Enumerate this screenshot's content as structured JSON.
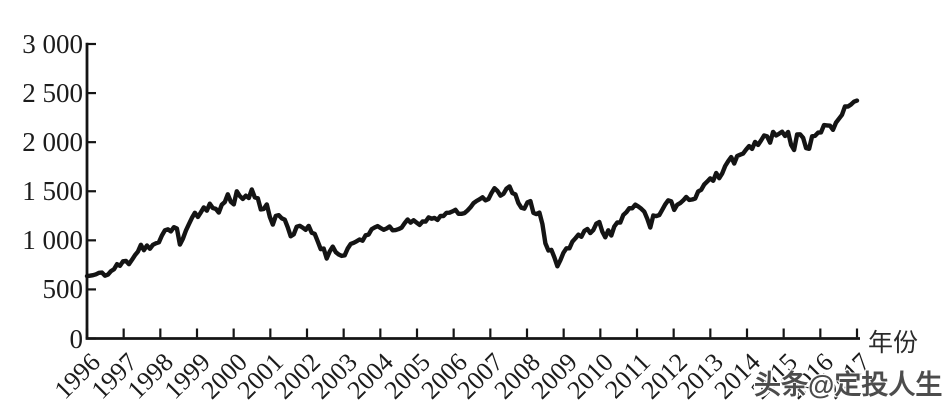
{
  "chart_data": {
    "type": "line",
    "title": "",
    "xlabel": "年份",
    "ylabel": "",
    "ylim": [
      0,
      3000
    ],
    "grid": false,
    "legend": "none",
    "line_color": "#141414",
    "x_interval": "monthly",
    "x_start_year": 1996,
    "x_tick_labels": [
      "1996",
      "1997",
      "1998",
      "1999",
      "2000",
      "2001",
      "2002",
      "2003",
      "2004",
      "2005",
      "2006",
      "2007",
      "2008",
      "2009",
      "2010",
      "2011",
      "2012",
      "2013",
      "2014",
      "2015",
      "2016",
      "2017"
    ],
    "y_ticks": [
      {
        "value": 3000,
        "label": "3 000"
      },
      {
        "value": 2500,
        "label": "2 500"
      },
      {
        "value": 2000,
        "label": "2 000"
      },
      {
        "value": 1500,
        "label": "1 500"
      },
      {
        "value": 1000,
        "label": "1 000"
      },
      {
        "value": 500,
        "label": "500"
      },
      {
        "value": 0,
        "label": "0"
      }
    ],
    "series": [
      {
        "values": [
          636,
          640,
          645,
          654,
          669,
          671,
          640,
          651,
          687,
          705,
          757,
          741,
          786,
          791,
          757,
          801,
          848,
          885,
          954,
          899,
          947,
          914,
          955,
          970,
          980,
          1049,
          1102,
          1112,
          1091,
          1134,
          1121,
          957,
          1017,
          1099,
          1164,
          1229,
          1280,
          1238,
          1286,
          1335,
          1302,
          1373,
          1329,
          1320,
          1283,
          1363,
          1389,
          1469,
          1394,
          1366,
          1499,
          1452,
          1421,
          1455,
          1431,
          1518,
          1437,
          1429,
          1315,
          1320,
          1366,
          1240,
          1160,
          1249,
          1256,
          1224,
          1211,
          1134,
          1041,
          1060,
          1139,
          1148,
          1130,
          1107,
          1147,
          1077,
          1067,
          990,
          911,
          916,
          815,
          886,
          936,
          880,
          856,
          841,
          848,
          917,
          964,
          975,
          990,
          1008,
          996,
          1051,
          1058,
          1112,
          1131,
          1145,
          1126,
          1107,
          1121,
          1141,
          1102,
          1104,
          1114,
          1130,
          1174,
          1212,
          1181,
          1204,
          1181,
          1157,
          1192,
          1191,
          1234,
          1220,
          1229,
          1207,
          1249,
          1248,
          1280,
          1281,
          1295,
          1311,
          1270,
          1270,
          1277,
          1304,
          1336,
          1378,
          1401,
          1418,
          1438,
          1407,
          1421,
          1482,
          1531,
          1503,
          1455,
          1474,
          1527,
          1549,
          1481,
          1468,
          1379,
          1331,
          1323,
          1386,
          1400,
          1280,
          1267,
          1283,
          1166,
          969,
          896,
          903,
          826,
          735,
          798,
          873,
          919,
          919,
          987,
          1021,
          1057,
          1036,
          1096,
          1115,
          1074,
          1104,
          1169,
          1187,
          1089,
          1031,
          1102,
          1049,
          1141,
          1183,
          1181,
          1258,
          1286,
          1327,
          1326,
          1364,
          1345,
          1321,
          1292,
          1219,
          1131,
          1253,
          1247,
          1258,
          1312,
          1366,
          1408,
          1398,
          1310,
          1362,
          1379,
          1407,
          1441,
          1412,
          1416,
          1426,
          1498,
          1515,
          1569,
          1598,
          1631,
          1606,
          1686,
          1633,
          1682,
          1757,
          1806,
          1848,
          1783,
          1859,
          1872,
          1884,
          1924,
          1960,
          1931,
          2003,
          1972,
          2018,
          2068,
          2059,
          1995,
          2105,
          2068,
          2086,
          2107,
          2063,
          2104,
          1972,
          1920,
          2079,
          2080,
          2044,
          1940,
          1932,
          2060,
          2065,
          2097,
          2099,
          2174,
          2171,
          2168,
          2126,
          2199,
          2239,
          2279,
          2364,
          2363,
          2384,
          2412,
          2423
        ]
      }
    ]
  },
  "watermark": {
    "text": "头条@定投人生"
  }
}
